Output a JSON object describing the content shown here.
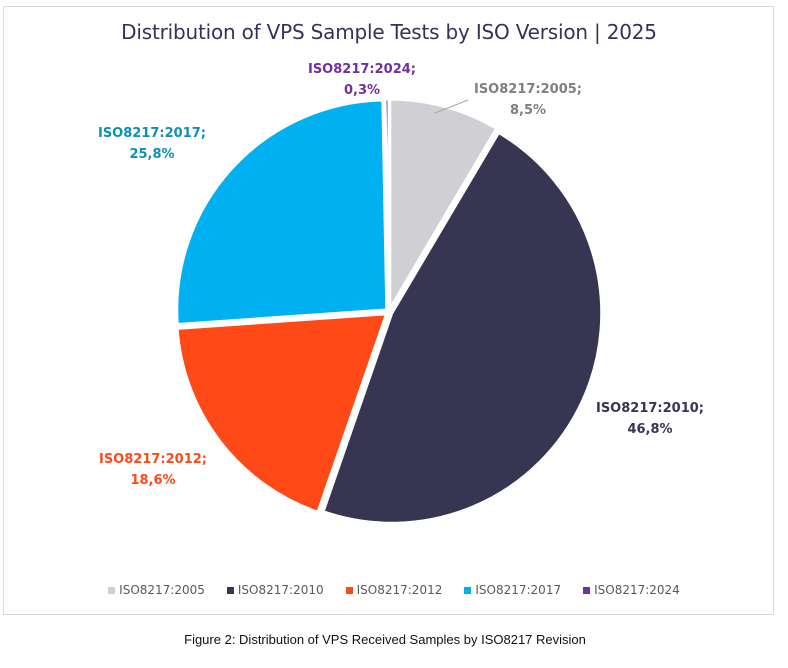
{
  "chart_data": {
    "type": "pie",
    "title": "Distribution of VPS Sample Tests by ISO Version | 2025",
    "start_angle": "12 o'clock",
    "direction": "clockwise",
    "slices": [
      {
        "name": "ISO8217:2005",
        "value": 8.5,
        "label_name": "ISO8217:2005;",
        "label_value": "8,5%",
        "color": "#d0cfd4",
        "label_color": "#7f7f7f"
      },
      {
        "name": "ISO8217:2010",
        "value": 46.8,
        "label_name": "ISO8217:2010;",
        "label_value": "46,8%",
        "color": "#363552",
        "label_color": "#363552"
      },
      {
        "name": "ISO8217:2012",
        "value": 18.6,
        "label_name": "ISO8217:2012;",
        "label_value": "18,6%",
        "color": "#ff4a17",
        "label_color": "#ff4a17"
      },
      {
        "name": "ISO8217:2017",
        "value": 25.8,
        "label_name": "ISO8217:2017;",
        "label_value": "25,8%",
        "color": "#00b0f0",
        "label_color": "#0e8fb8"
      },
      {
        "name": "ISO8217:2024",
        "value": 0.3,
        "label_name": "ISO8217:2024;",
        "label_value": "0,3%",
        "color": "#7030a0",
        "label_color": "#7030a0"
      }
    ],
    "legend": [
      "ISO8217:2005",
      "ISO8217:2010",
      "ISO8217:2012",
      "ISO8217:2017",
      "ISO8217:2024"
    ],
    "legend_position": "bottom"
  },
  "caption": "Figure 2: Distribution of VPS Received Samples by ISO8217 Revision"
}
